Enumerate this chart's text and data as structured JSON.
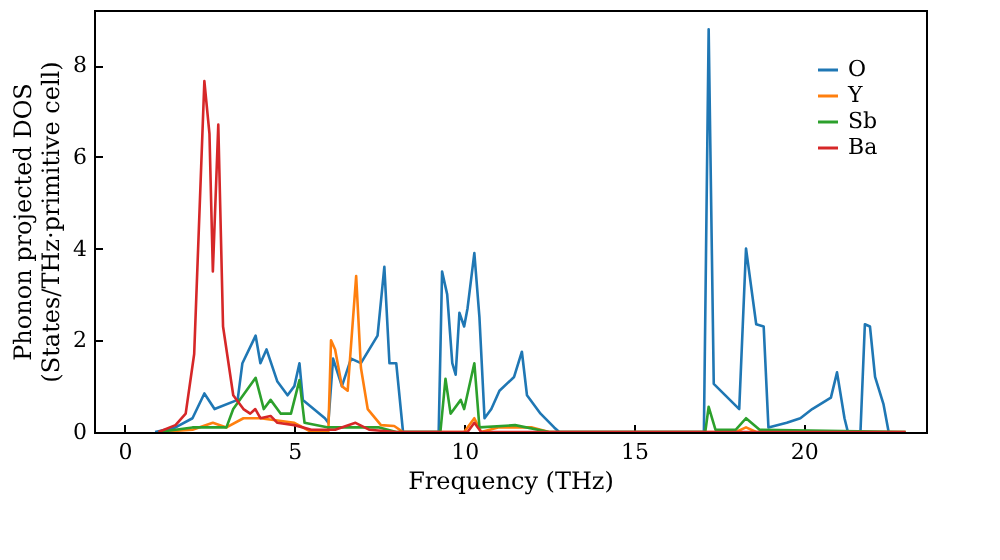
{
  "chart_data": {
    "type": "line",
    "xlabel": "Frequency (THz)",
    "ylabel": "Phonon projected DOS\n(States/THz·primitive cell)",
    "xlim": [
      -0.9,
      23.6
    ],
    "ylim": [
      0,
      9.2
    ],
    "xticks": [
      0,
      5,
      10,
      15,
      20
    ],
    "yticks": [
      0,
      2,
      4,
      6,
      8
    ],
    "grid": false,
    "legend": "top right",
    "marker": "none",
    "line_style": "solid",
    "series": [
      {
        "name": "O",
        "color": "#1f77b4",
        "x": [
          0.9,
          1.5,
          2.0,
          2.35,
          2.65,
          3.33,
          3.47,
          3.86,
          4.0,
          4.18,
          4.5,
          4.8,
          5.0,
          5.15,
          5.25,
          5.9,
          6.0,
          6.14,
          6.4,
          6.67,
          6.96,
          7.45,
          7.65,
          7.8,
          8.0,
          8.2,
          9.25,
          9.35,
          9.5,
          9.65,
          9.75,
          9.86,
          10.0,
          10.1,
          10.3,
          10.45,
          10.6,
          10.8,
          11.04,
          11.47,
          11.7,
          11.85,
          12.25,
          12.65,
          12.8,
          17.06,
          17.2,
          17.35,
          18.1,
          18.3,
          18.6,
          18.82,
          18.96,
          19.5,
          19.9,
          20.25,
          20.8,
          20.98,
          21.2,
          21.3,
          21.67,
          21.8,
          21.95,
          22.1,
          22.35,
          22.5
        ],
        "values": [
          0,
          0.1,
          0.3,
          0.84,
          0.5,
          0.7,
          1.5,
          2.1,
          1.5,
          1.8,
          1.1,
          0.8,
          1.0,
          1.5,
          0.7,
          0.3,
          0.2,
          1.6,
          1.0,
          1.6,
          1.5,
          2.1,
          3.6,
          1.5,
          1.5,
          0,
          0,
          3.5,
          3.0,
          1.5,
          1.25,
          2.6,
          2.3,
          2.7,
          3.9,
          2.5,
          0.3,
          0.5,
          0.9,
          1.2,
          1.75,
          0.8,
          0.4,
          0.1,
          0,
          0,
          8.78,
          1.05,
          0.5,
          4.0,
          2.35,
          2.3,
          0.1,
          0.2,
          0.3,
          0.5,
          0.75,
          1.3,
          0.3,
          0,
          0,
          2.35,
          2.3,
          1.2,
          0.6,
          0
        ]
      },
      {
        "name": "Y",
        "color": "#ff7f0e",
        "x": [
          1.0,
          2.0,
          2.6,
          3.0,
          3.5,
          4.0,
          4.5,
          5.0,
          5.5,
          6.0,
          6.08,
          6.2,
          6.4,
          6.57,
          6.82,
          6.96,
          7.16,
          7.55,
          7.94,
          8.2,
          10.0,
          10.3,
          10.5,
          11.0,
          12.0,
          12.5,
          18.0,
          18.3,
          18.6,
          23.0
        ],
        "values": [
          0,
          0.05,
          0.2,
          0.1,
          0.3,
          0.3,
          0.25,
          0.2,
          0,
          0,
          2.0,
          1.8,
          1.0,
          0.9,
          3.4,
          1.4,
          0.5,
          0.15,
          0.13,
          0,
          0,
          0.3,
          0,
          0.1,
          0.1,
          0,
          0,
          0.1,
          0,
          0
        ]
      },
      {
        "name": "Sb",
        "color": "#2ca02c",
        "x": [
          1.0,
          2.0,
          3.0,
          3.2,
          3.86,
          4.1,
          4.3,
          4.6,
          4.9,
          5.15,
          5.3,
          6.0,
          7.5,
          8.0,
          9.3,
          9.45,
          9.6,
          9.9,
          10.0,
          10.3,
          10.45,
          11.5,
          12.5,
          17.1,
          17.2,
          17.4,
          18.0,
          18.3,
          18.7,
          23.0
        ],
        "values": [
          0,
          0.1,
          0.1,
          0.5,
          1.18,
          0.5,
          0.7,
          0.4,
          0.4,
          1.13,
          0.2,
          0.1,
          0.1,
          0,
          0,
          1.16,
          0.4,
          0.7,
          0.5,
          1.5,
          0.1,
          0.15,
          0,
          0,
          0.55,
          0.05,
          0.05,
          0.3,
          0.05,
          0
        ]
      },
      {
        "name": "Ba",
        "color": "#d62728",
        "x": [
          1.0,
          1.5,
          1.8,
          2.05,
          2.35,
          2.5,
          2.6,
          2.76,
          2.9,
          3.2,
          3.5,
          3.7,
          3.85,
          4.0,
          4.3,
          4.5,
          5.0,
          5.5,
          6.2,
          6.8,
          7.2,
          8.0,
          10.1,
          10.3,
          10.5,
          23.0
        ],
        "values": [
          0,
          0.15,
          0.4,
          1.7,
          7.65,
          6.5,
          3.5,
          6.7,
          2.3,
          0.8,
          0.5,
          0.4,
          0.5,
          0.3,
          0.35,
          0.2,
          0.15,
          0.05,
          0.05,
          0.2,
          0.05,
          0,
          0,
          0.2,
          0,
          0
        ]
      }
    ]
  }
}
